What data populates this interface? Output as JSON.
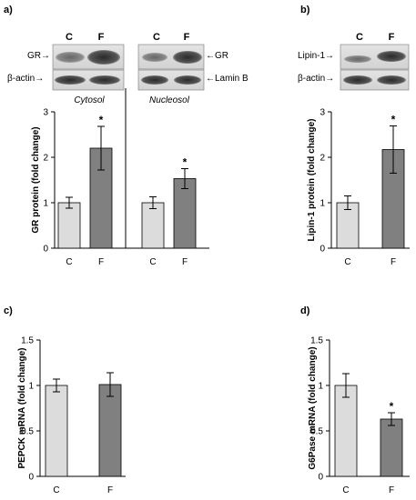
{
  "colors": {
    "control": "#dcdcdc",
    "treated": "#808080",
    "axis": "#000000"
  },
  "blots": {
    "a": {
      "lanes": [
        "C",
        "F"
      ],
      "cytosol": {
        "row1": "GR→",
        "row2": "β-actin→",
        "caption": "Cytosol"
      },
      "nucleosol": {
        "row1": "←GR",
        "row2": "←Lamin B",
        "caption": "Nucleosol"
      }
    },
    "b": {
      "lanes": [
        "C",
        "F"
      ],
      "row1": "Lipin-1→",
      "row2": "β-actin→"
    }
  },
  "chart_data": [
    {
      "panel": "a)",
      "type": "bar",
      "ylabel": "GR protein (fold change)",
      "ylim": [
        0,
        3
      ],
      "yticks": [
        "0",
        "1",
        "2",
        "3"
      ],
      "groups": [
        {
          "name": "Cytosol",
          "categories": [
            "C",
            "F"
          ],
          "values": [
            1.0,
            2.2
          ],
          "errors": [
            0.12,
            0.48
          ],
          "significance": [
            "",
            "*"
          ]
        },
        {
          "name": "Nucleosol",
          "categories": [
            "C",
            "F"
          ],
          "values": [
            1.0,
            1.53
          ],
          "errors": [
            0.13,
            0.22
          ],
          "significance": [
            "",
            "*"
          ]
        }
      ]
    },
    {
      "panel": "b)",
      "type": "bar",
      "ylabel": "Lipin-1 protein (fold change)",
      "ylim": [
        0,
        3
      ],
      "yticks": [
        "0",
        "1",
        "2",
        "3"
      ],
      "categories": [
        "C",
        "F"
      ],
      "values": [
        1.0,
        2.17
      ],
      "errors": [
        0.15,
        0.52
      ],
      "significance": [
        "",
        "*"
      ]
    },
    {
      "panel": "c)",
      "type": "bar",
      "ylabel": "PEPCK mRNA (fold change)",
      "ylim": [
        0,
        1.5
      ],
      "yticks": [
        "0",
        "0.5",
        "1",
        "1.5"
      ],
      "categories": [
        "C",
        "F"
      ],
      "values": [
        1.0,
        1.01
      ],
      "errors": [
        0.07,
        0.13
      ],
      "significance": [
        "",
        ""
      ]
    },
    {
      "panel": "d)",
      "type": "bar",
      "ylabel": "G6Pase mRNA (fold change)",
      "ylim": [
        0,
        1.5
      ],
      "yticks": [
        "0",
        "0.5",
        "1",
        "1.5"
      ],
      "categories": [
        "C",
        "F"
      ],
      "values": [
        1.0,
        0.63
      ],
      "errors": [
        0.13,
        0.07
      ],
      "significance": [
        "",
        "*"
      ]
    }
  ]
}
